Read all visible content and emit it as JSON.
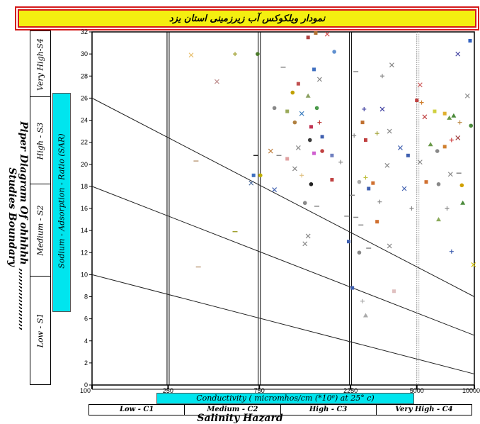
{
  "title": "نمودار ویلکوکس آب زیرزمینی استان یزد",
  "side_title": {
    "part1": "Piper Diagram Of",
    "part2": "ohhhhh ,,,,,,,,,,,,,,,,,,",
    "part3": "Studies Boundary"
  },
  "sar_label": "Sodium - Adsorption - Ratio (SAR)",
  "s_classes": [
    "Very High-S4",
    "High - S3",
    "Medium - S2",
    "Low - S1"
  ],
  "conductivity_label": "Conductivity ( micromhos/cm (*10⁶) at 25° c)",
  "c_classes": [
    "Low - C1",
    "Medium - C2",
    "High - C3",
    "Very High - C4"
  ],
  "salinity_label": "Salinity  Hazard",
  "chart_data": {
    "type": "scatter",
    "xscale": "log",
    "xlim": [
      100,
      10000
    ],
    "ylim": [
      0,
      32
    ],
    "x_ticks": [
      "100",
      "250",
      "750",
      "2250",
      "5000",
      "10000"
    ],
    "y_ticks": [
      "0",
      "2",
      "4",
      "6",
      "8",
      "10",
      "12",
      "14",
      "16",
      "18",
      "20",
      "22",
      "24",
      "26",
      "28",
      "30",
      "32"
    ],
    "class_boundaries_x": [
      250,
      750,
      2250
    ],
    "boundary_lines": [
      {
        "name": "S1-S2",
        "from": [
          100,
          10
        ],
        "to": [
          10000,
          1
        ]
      },
      {
        "name": "S2-S3",
        "from": [
          100,
          18
        ],
        "to": [
          10000,
          4.5
        ]
      },
      {
        "name": "S3-S4",
        "from": [
          100,
          26
        ],
        "to": [
          10000,
          8
        ]
      }
    ],
    "points": [
      {
        "x": 330,
        "y": 29.9,
        "m": "x",
        "c": "#e8c070"
      },
      {
        "x": 560,
        "y": 30,
        "m": "+",
        "c": "#a0a030"
      },
      {
        "x": 735,
        "y": 30,
        "m": "o",
        "c": "#4a7a2a"
      },
      {
        "x": 450,
        "y": 27.5,
        "m": "x",
        "c": "#c09090"
      },
      {
        "x": 1350,
        "y": 31.5,
        "m": "s",
        "c": "#b04040"
      },
      {
        "x": 1480,
        "y": 31.9,
        "m": "s",
        "c": "#b07030"
      },
      {
        "x": 1700,
        "y": 31.8,
        "m": "x",
        "c": "#d04040"
      },
      {
        "x": 1850,
        "y": 30.2,
        "m": "o",
        "c": "#6090d0"
      },
      {
        "x": 1450,
        "y": 28.6,
        "m": "s",
        "c": "#4070c0"
      },
      {
        "x": 1000,
        "y": 28.8,
        "m": "-",
        "c": "#888"
      },
      {
        "x": 1550,
        "y": 27.7,
        "m": "x",
        "c": "#888"
      },
      {
        "x": 2400,
        "y": 28.4,
        "m": "-",
        "c": "#888"
      },
      {
        "x": 3300,
        "y": 28,
        "m": "+",
        "c": "#888"
      },
      {
        "x": 3700,
        "y": 29,
        "m": "x",
        "c": "#888"
      },
      {
        "x": 5200,
        "y": 27.2,
        "m": "x",
        "c": "#d06060"
      },
      {
        "x": 8200,
        "y": 30,
        "m": "x",
        "c": "#4040a0"
      },
      {
        "x": 9500,
        "y": 31.2,
        "m": "s",
        "c": "#3060c0"
      },
      {
        "x": 1200,
        "y": 27.3,
        "m": "s",
        "c": "#c05050"
      },
      {
        "x": 1120,
        "y": 26.5,
        "m": "o",
        "c": "#c0a000"
      },
      {
        "x": 1350,
        "y": 26.2,
        "m": "^",
        "c": "#8aa060"
      },
      {
        "x": 1500,
        "y": 25.1,
        "m": "o",
        "c": "#4a9a4a"
      },
      {
        "x": 2650,
        "y": 25,
        "m": "+",
        "c": "#4040a0"
      },
      {
        "x": 3300,
        "y": 25,
        "m": "x",
        "c": "#4040a0"
      },
      {
        "x": 5000,
        "y": 25.8,
        "m": "s",
        "c": "#c04040"
      },
      {
        "x": 5300,
        "y": 25.6,
        "m": "+",
        "c": "#d08030"
      },
      {
        "x": 5500,
        "y": 24.3,
        "m": "x",
        "c": "#c04040"
      },
      {
        "x": 6200,
        "y": 24.8,
        "m": "s",
        "c": "#d0d040"
      },
      {
        "x": 7000,
        "y": 24.6,
        "m": "s",
        "c": "#e0b030"
      },
      {
        "x": 7400,
        "y": 24.2,
        "m": "^",
        "c": "#6a9a4a"
      },
      {
        "x": 7800,
        "y": 24.4,
        "m": "^",
        "c": "#4a8a3a"
      },
      {
        "x": 8400,
        "y": 23.8,
        "m": "+",
        "c": "#c09050"
      },
      {
        "x": 9200,
        "y": 26.2,
        "m": "x",
        "c": "#888"
      },
      {
        "x": 9600,
        "y": 23.5,
        "m": "o",
        "c": "#4a8a3a"
      },
      {
        "x": 900,
        "y": 25.1,
        "m": "o",
        "c": "#888"
      },
      {
        "x": 1050,
        "y": 24.8,
        "m": "s",
        "c": "#9aaa5a"
      },
      {
        "x": 1150,
        "y": 23.8,
        "m": "o",
        "c": "#b08040"
      },
      {
        "x": 1250,
        "y": 24.6,
        "m": "x",
        "c": "#4080c0"
      },
      {
        "x": 1400,
        "y": 23.4,
        "m": "s",
        "c": "#c03050"
      },
      {
        "x": 1550,
        "y": 23.8,
        "m": "+",
        "c": "#c04040"
      },
      {
        "x": 1380,
        "y": 22.2,
        "m": "o",
        "c": "#3a3a3a"
      },
      {
        "x": 1600,
        "y": 22.5,
        "m": "s",
        "c": "#4060b0"
      },
      {
        "x": 1200,
        "y": 21.5,
        "m": "x",
        "c": "#888"
      },
      {
        "x": 1450,
        "y": 21,
        "m": "s",
        "c": "#d060d0"
      },
      {
        "x": 1600,
        "y": 21.2,
        "m": "o",
        "c": "#c04040"
      },
      {
        "x": 1800,
        "y": 20.8,
        "m": "s",
        "c": "#7080c0"
      },
      {
        "x": 2000,
        "y": 20.2,
        "m": "+",
        "c": "#888"
      },
      {
        "x": 2350,
        "y": 22.6,
        "m": "+",
        "c": "#888"
      },
      {
        "x": 2600,
        "y": 23.8,
        "m": "s",
        "c": "#c07030"
      },
      {
        "x": 2700,
        "y": 22.2,
        "m": "s",
        "c": "#c04040"
      },
      {
        "x": 3100,
        "y": 22.8,
        "m": "+",
        "c": "#a0a030"
      },
      {
        "x": 3600,
        "y": 23,
        "m": "x",
        "c": "#888"
      },
      {
        "x": 4100,
        "y": 21.5,
        "m": "x",
        "c": "#4060b0"
      },
      {
        "x": 4500,
        "y": 20.8,
        "m": "s",
        "c": "#4060b0"
      },
      {
        "x": 5200,
        "y": 20.2,
        "m": "x",
        "c": "#888"
      },
      {
        "x": 5900,
        "y": 21.8,
        "m": "^",
        "c": "#6a9a4a"
      },
      {
        "x": 6400,
        "y": 21.2,
        "m": "o",
        "c": "#888"
      },
      {
        "x": 7000,
        "y": 21.6,
        "m": "s",
        "c": "#d08030"
      },
      {
        "x": 7600,
        "y": 22.2,
        "m": "+",
        "c": "#d04040"
      },
      {
        "x": 8200,
        "y": 22.4,
        "m": "x",
        "c": "#a04040"
      },
      {
        "x": 860,
        "y": 21.2,
        "m": "x",
        "c": "#c08040"
      },
      {
        "x": 950,
        "y": 20.8,
        "m": "-",
        "c": "#888"
      },
      {
        "x": 1050,
        "y": 20.5,
        "m": "s",
        "c": "#e0a0a0"
      },
      {
        "x": 720,
        "y": 20.8,
        "m": "-",
        "c": "#222"
      },
      {
        "x": 700,
        "y": 19,
        "m": "s",
        "c": "#4070c0"
      },
      {
        "x": 760,
        "y": 19,
        "m": "o",
        "c": "#c0b000"
      },
      {
        "x": 680,
        "y": 18.3,
        "m": "x",
        "c": "#5070a0"
      },
      {
        "x": 1150,
        "y": 19.6,
        "m": "x",
        "c": "#888"
      },
      {
        "x": 1250,
        "y": 19,
        "m": "+",
        "c": "#e0c080"
      },
      {
        "x": 1400,
        "y": 18.2,
        "m": "o",
        "c": "#222"
      },
      {
        "x": 1800,
        "y": 18.6,
        "m": "s",
        "c": "#c04040"
      },
      {
        "x": 2300,
        "y": 17.2,
        "m": "-",
        "c": "#888"
      },
      {
        "x": 2500,
        "y": 18.4,
        "m": "o",
        "c": "#aaa"
      },
      {
        "x": 2700,
        "y": 18.8,
        "m": "+",
        "c": "#c0c040"
      },
      {
        "x": 2800,
        "y": 17.8,
        "m": "s",
        "c": "#4060b0"
      },
      {
        "x": 2950,
        "y": 18.3,
        "m": "s",
        "c": "#d07030"
      },
      {
        "x": 3500,
        "y": 19.9,
        "m": "x",
        "c": "#888"
      },
      {
        "x": 4300,
        "y": 17.8,
        "m": "x",
        "c": "#4060b0"
      },
      {
        "x": 5600,
        "y": 18.4,
        "m": "s",
        "c": "#d07030"
      },
      {
        "x": 6500,
        "y": 18.2,
        "m": "o",
        "c": "#888"
      },
      {
        "x": 7500,
        "y": 19.1,
        "m": "x",
        "c": "#888"
      },
      {
        "x": 8300,
        "y": 19.2,
        "m": "-",
        "c": "#888"
      },
      {
        "x": 8600,
        "y": 18.1,
        "m": "o",
        "c": "#d0a000"
      },
      {
        "x": 8700,
        "y": 16.5,
        "m": "^",
        "c": "#4a8a3a"
      },
      {
        "x": 7200,
        "y": 16,
        "m": "+",
        "c": "#888"
      },
      {
        "x": 4700,
        "y": 16,
        "m": "+",
        "c": "#888"
      },
      {
        "x": 3200,
        "y": 16.6,
        "m": "+",
        "c": "#888"
      },
      {
        "x": 1300,
        "y": 16.5,
        "m": "o",
        "c": "#888"
      },
      {
        "x": 900,
        "y": 17.7,
        "m": "x",
        "c": "#4060b0"
      },
      {
        "x": 1500,
        "y": 16.2,
        "m": "-",
        "c": "#888"
      },
      {
        "x": 2150,
        "y": 15.3,
        "m": "-",
        "c": "#888"
      },
      {
        "x": 2400,
        "y": 15.2,
        "m": "-",
        "c": "#888"
      },
      {
        "x": 3100,
        "y": 14.8,
        "m": "s",
        "c": "#d07030"
      },
      {
        "x": 2550,
        "y": 14.5,
        "m": "-",
        "c": "#888"
      },
      {
        "x": 6500,
        "y": 15,
        "m": "^",
        "c": "#8aaa5a"
      },
      {
        "x": 1350,
        "y": 13.5,
        "m": "x",
        "c": "#888"
      },
      {
        "x": 1300,
        "y": 12.8,
        "m": "x",
        "c": "#888"
      },
      {
        "x": 2200,
        "y": 13,
        "m": "s",
        "c": "#4060b0"
      },
      {
        "x": 2500,
        "y": 12,
        "m": "o",
        "c": "#888"
      },
      {
        "x": 2800,
        "y": 12.4,
        "m": "-",
        "c": "#888"
      },
      {
        "x": 3600,
        "y": 12.6,
        "m": "x",
        "c": "#888"
      },
      {
        "x": 7600,
        "y": 12.1,
        "m": "+",
        "c": "#4060b0"
      },
      {
        "x": 9900,
        "y": 10.9,
        "m": "x",
        "c": "#d0c000"
      },
      {
        "x": 560,
        "y": 13.9,
        "m": "-",
        "c": "#a0a030"
      },
      {
        "x": 360,
        "y": 10.7,
        "m": "-",
        "c": "#c0a080"
      },
      {
        "x": 2300,
        "y": 8.8,
        "m": "s",
        "c": "#4060b0"
      },
      {
        "x": 2600,
        "y": 7.6,
        "m": "+",
        "c": "#aaa"
      },
      {
        "x": 3800,
        "y": 8.5,
        "m": "s",
        "c": "#e0c0c0"
      },
      {
        "x": 350,
        "y": 20.3,
        "m": "-",
        "c": "#c0a080"
      },
      {
        "x": 2700,
        "y": 6.3,
        "m": "^",
        "c": "#aaa"
      }
    ]
  }
}
